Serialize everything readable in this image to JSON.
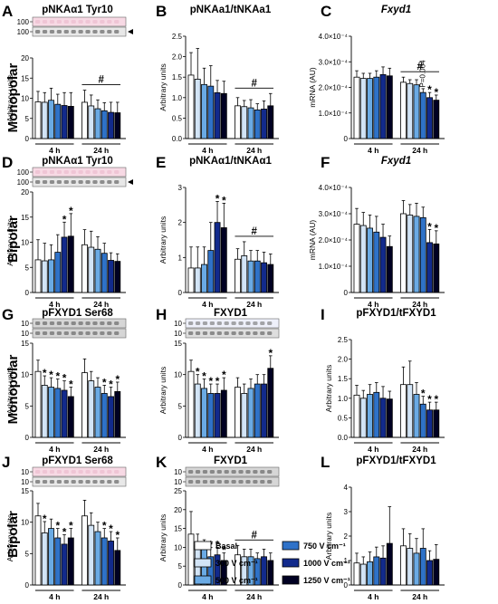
{
  "rows": [
    {
      "label": "Monopolar",
      "panels": [
        0,
        1,
        2
      ]
    },
    {
      "label": "Bipolar",
      "panels": [
        3,
        4,
        5
      ]
    },
    {
      "label": "Monopolar",
      "panels": [
        6,
        7,
        8
      ]
    },
    {
      "label": "Bipolar",
      "panels": [
        9,
        10,
        11
      ]
    }
  ],
  "groups": [
    "4 h",
    "24 h"
  ],
  "legend": [
    {
      "name": "Basal",
      "color": "#ffffff"
    },
    {
      "name": "300 V cm⁻¹",
      "color": "#d2e4f6"
    },
    {
      "name": "500 V cm⁻¹",
      "color": "#6aaae4"
    },
    {
      "name": "750 V cm⁻¹",
      "color": "#2f72c8"
    },
    {
      "name": "1000 V cm⁻¹",
      "color": "#122a8c"
    },
    {
      "name": "1250 V cm⁻¹",
      "color": "#000022"
    }
  ],
  "chart_data": [
    {
      "letter": "A",
      "title": "pNKAα1 Tyr10",
      "ylabel": "Arbitrary units",
      "type": "bar",
      "ylim": [
        0,
        20
      ],
      "yticks": [
        "0",
        "5",
        "10",
        "15",
        "20"
      ],
      "blot": {
        "markers": [
          "100",
          "100"
        ],
        "tint": "pink",
        "arrow": true
      },
      "series_4h": [
        9.1,
        9.0,
        9.5,
        8.5,
        8.2,
        8.0
      ],
      "err_4h": [
        2.6,
        2.4,
        3.0,
        2.5,
        3.2,
        3.4
      ],
      "series_24h": [
        9.0,
        8.1,
        7.4,
        6.9,
        6.5,
        6.4
      ],
      "err_24h": [
        3.0,
        2.7,
        2.2,
        2.0,
        2.5,
        2.6
      ],
      "stars_4h": [],
      "stars_24h": [],
      "hash": "24 h",
      "hash_label": "#"
    },
    {
      "letter": "B",
      "title": "pNKAa1/tNKAa1",
      "ylabel": "Arbitrary units",
      "type": "bar",
      "ylim": [
        0,
        2.5
      ],
      "yticks": [
        "0.0",
        "0.5",
        "1.0",
        "1.5",
        "2.0",
        "2.5"
      ],
      "series_4h": [
        1.55,
        1.45,
        1.32,
        1.28,
        1.12,
        1.1
      ],
      "err_4h": [
        0.55,
        0.75,
        0.4,
        0.5,
        0.3,
        0.3
      ],
      "series_24h": [
        0.8,
        0.78,
        0.75,
        0.7,
        0.72,
        0.8
      ],
      "err_24h": [
        0.2,
        0.15,
        0.2,
        0.15,
        0.2,
        0.3
      ],
      "stars_4h": [],
      "stars_24h": [],
      "hash": "24 h",
      "hash_label": "#"
    },
    {
      "letter": "C",
      "title": "Fxyd1",
      "italic": true,
      "ylabel": "mRNA (AU)",
      "type": "bar",
      "ylim": [
        0,
        4
      ],
      "yticks": [
        "0",
        "1.0×10⁻⁴",
        "2.0×10⁻⁴",
        "3.0×10⁻⁴",
        "4.0×10⁻⁴"
      ],
      "series_4h": [
        2.4,
        2.35,
        2.35,
        2.4,
        2.5,
        2.45
      ],
      "err_4h": [
        0.25,
        0.2,
        0.2,
        0.25,
        0.3,
        0.3
      ],
      "series_24h": [
        2.2,
        2.15,
        2.1,
        1.8,
        1.6,
        1.5
      ],
      "err_24h": [
        0.2,
        0.15,
        0.2,
        0.15,
        0.2,
        0.2
      ],
      "stars_4h": [],
      "stars_24h": [
        4,
        5
      ],
      "hash": "24 h",
      "hash_label": "#",
      "annot": "P=0.064"
    },
    {
      "letter": "D",
      "title": "pNKAα1 Tyr10",
      "ylabel": "Arbitrary units",
      "type": "bar",
      "ylim": [
        0,
        20
      ],
      "yticks": [
        "0",
        "5",
        "10",
        "15",
        "20"
      ],
      "blot": {
        "markers": [
          "100",
          "100"
        ],
        "tint": "pink",
        "arrow": true
      },
      "series_4h": [
        6.5,
        6.3,
        6.5,
        8.0,
        11.0,
        11.2
      ],
      "err_4h": [
        4.0,
        3.5,
        3.0,
        3.5,
        3.0,
        4.5
      ],
      "series_24h": [
        9.5,
        9.0,
        8.6,
        7.8,
        6.4,
        6.2
      ],
      "err_24h": [
        3.0,
        3.2,
        2.5,
        2.0,
        1.5,
        1.5
      ],
      "stars_4h": [
        4,
        5
      ],
      "stars_24h": [],
      "hash": null
    },
    {
      "letter": "E",
      "title": "pNKAα1/tNKAα1",
      "ylabel": "Arbitrary units",
      "type": "bar",
      "ylim": [
        0,
        3
      ],
      "yticks": [
        "0",
        "1",
        "2",
        "3"
      ],
      "series_4h": [
        0.7,
        0.7,
        0.8,
        1.2,
        2.0,
        1.85
      ],
      "err_4h": [
        0.6,
        0.6,
        0.5,
        0.8,
        0.6,
        0.7
      ],
      "series_24h": [
        0.95,
        1.05,
        0.9,
        0.9,
        0.85,
        0.8
      ],
      "err_24h": [
        0.3,
        0.4,
        0.3,
        0.3,
        0.3,
        0.3
      ],
      "stars_4h": [
        4,
        5
      ],
      "stars_24h": [],
      "hash": "24 h",
      "hash_label": "#"
    },
    {
      "letter": "F",
      "title": "Fxyd1",
      "italic": true,
      "ylabel": "mRNA (AU)",
      "type": "bar",
      "ylim": [
        0,
        4
      ],
      "yticks": [
        "0",
        "1.0×10⁻⁴",
        "2.0×10⁻⁴",
        "3.0×10⁻⁴",
        "4.0×10⁻⁴"
      ],
      "series_4h": [
        2.6,
        2.55,
        2.45,
        2.3,
        2.1,
        1.75
      ],
      "err_4h": [
        0.6,
        0.5,
        0.5,
        0.6,
        0.5,
        0.4
      ],
      "series_24h": [
        3.0,
        2.95,
        2.9,
        2.85,
        1.9,
        1.85
      ],
      "err_24h": [
        0.5,
        0.4,
        0.5,
        0.4,
        0.5,
        0.5
      ],
      "stars_4h": [],
      "stars_24h": [
        4,
        5
      ],
      "hash": null
    },
    {
      "letter": "G",
      "title": "pFXYD1 Ser68",
      "ylabel": "Arbitrary units",
      "type": "bar",
      "ylim": [
        0,
        15
      ],
      "yticks": [
        "0",
        "5",
        "10",
        "15"
      ],
      "blot": {
        "markers": [
          "10",
          "10"
        ],
        "tint": "gray",
        "arrow": false
      },
      "series_4h": [
        10.5,
        8.3,
        8.0,
        7.8,
        7.5,
        6.5
      ],
      "err_4h": [
        1.8,
        1.5,
        1.5,
        1.5,
        1.5,
        1.5
      ],
      "series_24h": [
        10.3,
        9.0,
        8.0,
        7.0,
        6.5,
        7.3
      ],
      "err_24h": [
        2.2,
        1.5,
        1.5,
        1.3,
        1.5,
        1.5
      ],
      "stars_4h": [
        1,
        2,
        3,
        4,
        5
      ],
      "stars_24h": [
        3,
        4,
        5
      ],
      "hash": null
    },
    {
      "letter": "H",
      "title": "FXYD1",
      "ylabel": "Arbitrary units",
      "type": "bar",
      "ylim": [
        0,
        15
      ],
      "yticks": [
        "0",
        "5",
        "10",
        "15"
      ],
      "blot": {
        "markers": [
          "10",
          "10"
        ],
        "tint": "light",
        "arrow": false
      },
      "series_4h": [
        10.5,
        8.5,
        7.8,
        7.0,
        7.0,
        7.5
      ],
      "err_4h": [
        1.8,
        1.5,
        1.5,
        1.5,
        1.5,
        2.0
      ],
      "series_24h": [
        8.0,
        7.0,
        7.8,
        8.5,
        8.5,
        11.0
      ],
      "err_24h": [
        1.5,
        1.5,
        1.5,
        1.5,
        1.5,
        2.0
      ],
      "stars_4h": [
        1,
        2,
        3,
        4,
        5
      ],
      "stars_24h": [
        5
      ],
      "hash": null
    },
    {
      "letter": "I",
      "title": "pFXYD1/tFXYD1",
      "ylabel": "Arbitrary units",
      "type": "bar",
      "ylim": [
        0,
        2.5
      ],
      "yticks": [
        "0.0",
        "0.5",
        "1.0",
        "1.5",
        "2.0",
        "2.5"
      ],
      "series_4h": [
        1.08,
        1.0,
        1.1,
        1.15,
        1.0,
        0.98
      ],
      "err_4h": [
        0.25,
        0.2,
        0.25,
        0.25,
        0.3,
        0.2
      ],
      "series_24h": [
        1.35,
        1.35,
        1.1,
        0.85,
        0.7,
        0.7
      ],
      "err_24h": [
        0.45,
        0.6,
        0.3,
        0.2,
        0.2,
        0.2
      ],
      "stars_4h": [],
      "stars_24h": [
        3,
        4,
        5
      ],
      "hash": null
    },
    {
      "letter": "J",
      "title": "pFXYD1 Ser68",
      "ylabel": "Arbitrary units",
      "type": "bar",
      "ylim": [
        0,
        15
      ],
      "yticks": [
        "0",
        "5",
        "10",
        "15"
      ],
      "blot": {
        "markers": [
          "10",
          "10"
        ],
        "tint": "pink",
        "arrow": false
      },
      "series_4h": [
        11.0,
        8.3,
        9.0,
        7.5,
        6.5,
        7.5
      ],
      "err_4h": [
        2.0,
        1.8,
        1.5,
        1.5,
        1.5,
        1.5
      ],
      "series_24h": [
        11.0,
        9.5,
        8.5,
        7.5,
        7.0,
        5.5
      ],
      "err_24h": [
        2.5,
        2.0,
        1.5,
        1.5,
        1.5,
        2.0
      ],
      "stars_4h": [
        1,
        3,
        4,
        5
      ],
      "stars_24h": [
        3,
        4,
        5
      ],
      "hash": null
    },
    {
      "letter": "K",
      "title": "FXYD1",
      "ylabel": "Arbitrary units",
      "type": "bar",
      "ylim": [
        0,
        25
      ],
      "yticks": [
        "0",
        "5",
        "10",
        "15",
        "20",
        "25"
      ],
      "blot": {
        "markers": [
          "10",
          "10"
        ],
        "tint": "gray",
        "arrow": false
      },
      "series_4h": [
        13.5,
        10.5,
        9.5,
        7.5,
        8.0,
        6.5
      ],
      "err_4h": [
        6.0,
        3.0,
        2.5,
        2.5,
        2.0,
        2.0
      ],
      "series_24h": [
        8.0,
        7.5,
        7.5,
        7.0,
        7.5,
        6.5
      ],
      "err_24h": [
        2.5,
        2.0,
        2.0,
        1.5,
        2.0,
        2.0
      ],
      "stars_4h": [
        3,
        4,
        5
      ],
      "stars_24h": [],
      "hash": "24 h",
      "hash_label": "#"
    },
    {
      "letter": "L",
      "title": "pFXYD1/tFXYD1",
      "ylabel": "Arbitrary units",
      "type": "bar",
      "ylim": [
        0,
        4
      ],
      "yticks": [
        "0",
        "1",
        "2",
        "3",
        "4"
      ],
      "series_4h": [
        0.9,
        0.85,
        0.95,
        1.15,
        1.1,
        1.7
      ],
      "err_4h": [
        0.4,
        0.3,
        0.4,
        0.4,
        0.5,
        1.5
      ],
      "series_24h": [
        1.6,
        1.5,
        1.3,
        1.5,
        1.0,
        1.05
      ],
      "err_24h": [
        0.7,
        0.6,
        0.6,
        0.8,
        0.4,
        0.6
      ],
      "stars_4h": [],
      "stars_24h": [],
      "hash": null
    }
  ]
}
